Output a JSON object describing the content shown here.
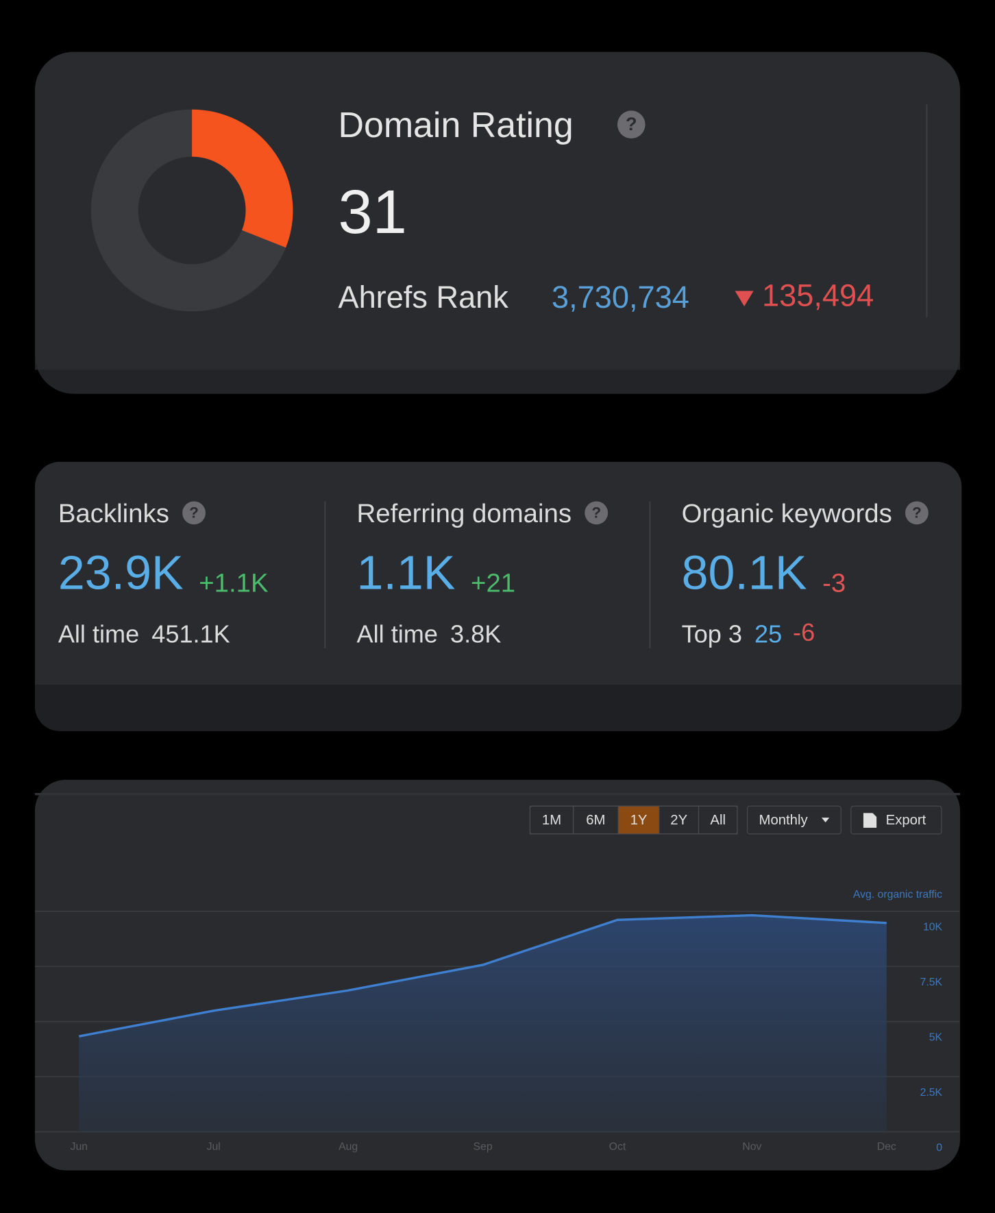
{
  "domain_rating": {
    "title": "Domain Rating",
    "value": 31,
    "scale": [
      0,
      100
    ],
    "rank_label": "Ahrefs Rank",
    "rank": "3,730,734",
    "rank_change": "135,494"
  },
  "metrics": [
    {
      "title": "Backlinks",
      "value": "23.9K",
      "change": "+1.1K",
      "sub_label": "All time",
      "sub_value": "451.1K"
    },
    {
      "title": "Referring domains",
      "value": "1.1K",
      "change": "+21",
      "sub_label": "All time",
      "sub_value": "3.8K"
    },
    {
      "title": "Organic keywords",
      "value": "80.1K",
      "change": "-3",
      "sub_label": "Top 3",
      "sub_value": "25",
      "sub_change": "-6"
    }
  ],
  "toolbar": {
    "ranges": [
      "1M",
      "6M",
      "1Y",
      "2Y",
      "All"
    ],
    "active_range": "1Y",
    "interval": "Monthly",
    "export": "Export"
  },
  "chart_data": {
    "type": "area",
    "categories": [
      "Jun",
      "Jul",
      "Aug",
      "Sep",
      "Oct",
      "Nov",
      "Dec"
    ],
    "series": [
      {
        "name": "Avg. organic traffic",
        "color": "#3f7fd0",
        "values": [
          4330,
          5490,
          6410,
          7570,
          9610,
          9820,
          9470
        ]
      }
    ],
    "ylim": [
      0,
      10000
    ],
    "yticks": [
      0,
      {
        "value": 2500,
        "label": "2.5K"
      },
      {
        "value": 5000,
        "label": "5K"
      },
      {
        "value": 7500,
        "label": "7.5K"
      },
      {
        "value": 10000,
        "label": "10K"
      }
    ],
    "grid": true
  }
}
